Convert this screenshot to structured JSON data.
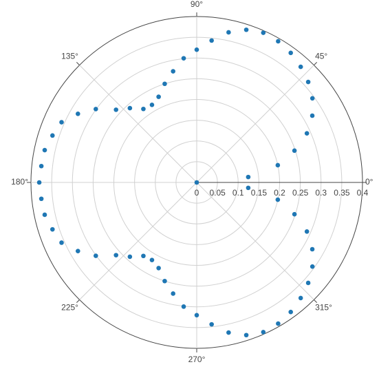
{
  "chart_data": {
    "type": "polar",
    "theta": [
      0,
      6,
      12,
      18,
      24,
      30,
      36,
      42,
      48,
      54,
      60,
      66,
      72,
      78,
      84,
      90,
      96,
      102,
      108,
      114,
      120,
      126,
      132,
      138,
      144,
      150,
      156,
      162,
      168,
      174,
      180,
      186,
      192,
      198,
      204,
      210,
      216,
      222,
      228,
      234,
      240,
      246,
      252,
      258,
      264,
      270,
      276,
      282,
      288,
      294,
      300,
      306,
      312,
      318,
      324,
      330,
      336,
      342,
      348,
      354
    ],
    "r": [
      0,
      0.125,
      0.2,
      0.248,
      0.291,
      0.322,
      0.345,
      0.362,
      0.375,
      0.386,
      0.393,
      0.395,
      0.387,
      0.37,
      0.344,
      0.32,
      0.301,
      0.274,
      0.25,
      0.226,
      0.216,
      0.219,
      0.241,
      0.262,
      0.301,
      0.331,
      0.357,
      0.366,
      0.375,
      0.377,
      0.38,
      0.377,
      0.375,
      0.366,
      0.357,
      0.331,
      0.301,
      0.262,
      0.241,
      0.219,
      0.216,
      0.226,
      0.25,
      0.274,
      0.301,
      0.32,
      0.344,
      0.37,
      0.387,
      0.395,
      0.393,
      0.386,
      0.375,
      0.362,
      0.345,
      0.322,
      0.291,
      0.248,
      0.2,
      0.125
    ],
    "color": "#1f77b4",
    "rlim": [
      0,
      0.4
    ],
    "rticks": [
      0,
      0.05,
      0.1,
      0.15,
      0.2,
      0.25,
      0.3,
      0.35,
      0.4
    ],
    "thetaticks": [
      {
        "value": 0,
        "label": "0°"
      },
      {
        "value": 45,
        "label": "45°"
      },
      {
        "value": 90,
        "label": "90°"
      },
      {
        "value": 135,
        "label": "135°"
      },
      {
        "value": 180,
        "label": "180°"
      },
      {
        "value": 225,
        "label": "225°"
      },
      {
        "value": 270,
        "label": "270°"
      },
      {
        "value": 315,
        "label": "315°"
      }
    ],
    "grid": true
  }
}
